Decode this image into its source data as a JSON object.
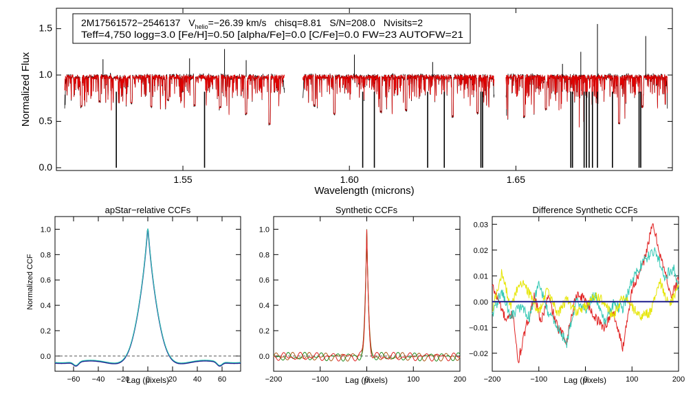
{
  "colors": {
    "axis": "#000000",
    "observed": "#000000",
    "model": "#e00000",
    "ccf_dark": "#1a1a8c",
    "ccf_cyan": "#35c9b5",
    "ccf_orange": "#b05a1a",
    "ccf_green": "#1e8c1e",
    "ccf_red": "#e02020",
    "ccf_yellow": "#e5e500",
    "zero_line": "#555555"
  },
  "chart_data": [
    {
      "id": "spectrum",
      "type": "line",
      "title": "",
      "xlabel": "Wavelength (microns)",
      "ylabel": "Normalized Flux",
      "xlim": [
        1.512,
        1.697
      ],
      "ylim": [
        -0.03,
        1.72
      ],
      "xticks": [
        1.55,
        1.6,
        1.65
      ],
      "xtick_labels": [
        "1.55",
        "1.60",
        "1.65"
      ],
      "yticks": [
        0.0,
        0.5,
        1.0,
        1.5
      ],
      "ytick_labels": [
        "0.0",
        "0.5",
        "1.0",
        "1.5"
      ],
      "annotation": {
        "star_id": "2M17561572−2546137",
        "vhelio_label": "V",
        "vhelio_subscript": "helio",
        "vhelio_value": "=−26.39 km/s",
        "chisq": "chisq=8.81",
        "snr": "S/N=208.0",
        "nvisits": "Nvisits=2",
        "params": "Teff=4,750 logg=3.0 [Fe/H]=0.50 [alpha/Fe]=0.0 [C/Fe]=0.0 FW=23 AUTOFW=21"
      },
      "detector_chips": [
        [
          1.5145,
          1.5805
        ],
        [
          1.586,
          1.6435
        ],
        [
          1.647,
          1.6955
        ]
      ],
      "continuum": 0.98,
      "series": [
        {
          "name": "observed spectrum",
          "color_key": "observed"
        },
        {
          "name": "model fit",
          "color_key": "model"
        }
      ],
      "bad_pixels": [
        1.53,
        1.5565,
        1.604,
        1.6075,
        1.6235,
        1.6285,
        1.6395,
        1.64,
        1.6665,
        1.667,
        1.6705,
        1.6712,
        1.672,
        1.673,
        1.6745,
        1.679,
        1.687,
        1.6875
      ],
      "emission_spikes": [
        {
          "x": 1.526,
          "y": 1.17
        },
        {
          "x": 1.552,
          "y": 1.18
        },
        {
          "x": 1.5625,
          "y": 1.28
        },
        {
          "x": 1.569,
          "y": 1.16
        },
        {
          "x": 1.6015,
          "y": 1.22
        },
        {
          "x": 1.625,
          "y": 1.14
        },
        {
          "x": 1.664,
          "y": 1.12
        },
        {
          "x": 1.6695,
          "y": 1.25
        },
        {
          "x": 1.6745,
          "y": 1.55
        },
        {
          "x": 1.689,
          "y": 1.42
        }
      ],
      "absorption_lines": [
        {
          "x": 1.5195,
          "y": 0.66
        },
        {
          "x": 1.525,
          "y": 0.71
        },
        {
          "x": 1.5345,
          "y": 0.7
        },
        {
          "x": 1.5405,
          "y": 0.66
        },
        {
          "x": 1.5455,
          "y": 0.73
        },
        {
          "x": 1.5535,
          "y": 0.67
        },
        {
          "x": 1.5612,
          "y": 0.65
        },
        {
          "x": 1.569,
          "y": 0.58
        },
        {
          "x": 1.576,
          "y": 0.47
        },
        {
          "x": 1.5895,
          "y": 0.67
        },
        {
          "x": 1.5955,
          "y": 0.58
        },
        {
          "x": 1.6095,
          "y": 0.6
        },
        {
          "x": 1.617,
          "y": 0.62
        },
        {
          "x": 1.631,
          "y": 0.55
        },
        {
          "x": 1.6385,
          "y": 0.59
        },
        {
          "x": 1.6525,
          "y": 0.55
        },
        {
          "x": 1.659,
          "y": 0.63
        },
        {
          "x": 1.681,
          "y": 0.48
        },
        {
          "x": 1.688,
          "y": 0.66
        }
      ]
    },
    {
      "id": "apstar_ccf",
      "type": "line",
      "title": "apStar−relative CCFs",
      "xlabel": "Lag (pixels)",
      "ylabel": "Normalized CCF",
      "xlim": [
        -75,
        75
      ],
      "ylim": [
        -0.12,
        1.1
      ],
      "xticks": [
        -60,
        -40,
        -20,
        0,
        20,
        40,
        60
      ],
      "xtick_labels": [
        "−60",
        "−40",
        "−20",
        "0",
        "20",
        "40",
        "60"
      ],
      "yticks": [
        0.0,
        0.2,
        0.4,
        0.6,
        0.8,
        1.0
      ],
      "ytick_labels": [
        "0.0",
        "0.2",
        "0.4",
        "0.6",
        "0.8",
        "1.0"
      ],
      "zero_line": true,
      "peak": 1.0,
      "peak_lag": 0,
      "series": [
        {
          "name": "visit 1",
          "color_key": "ccf_dark"
        },
        {
          "name": "visit 2",
          "color_key": "ccf_cyan"
        }
      ]
    },
    {
      "id": "synthetic_ccf",
      "type": "line",
      "title": "Synthetic CCFs",
      "xlabel": "Lag (pixels)",
      "ylabel": "",
      "xlim": [
        -200,
        200
      ],
      "ylim": [
        -0.12,
        1.1
      ],
      "xticks": [
        -200,
        -100,
        0,
        100,
        200
      ],
      "xtick_labels": [
        "−200",
        "−100",
        "0",
        "100",
        "200"
      ],
      "yticks": [
        0.0,
        0.2,
        0.4,
        0.6,
        0.8,
        1.0
      ],
      "ytick_labels": [
        "0.0",
        "0.2",
        "0.4",
        "0.6",
        "0.8",
        "1.0"
      ],
      "zero_line": true,
      "peak": 1.0,
      "peak_lag": 0,
      "series": [
        {
          "name": "combined",
          "color_key": "ccf_orange"
        },
        {
          "name": "visit 1",
          "color_key": "ccf_green"
        },
        {
          "name": "visit 2",
          "color_key": "ccf_red"
        }
      ]
    },
    {
      "id": "difference_ccf",
      "type": "line",
      "title": "Difference Synthetic CCFs",
      "xlabel": "Lag (pixels)",
      "ylabel": "",
      "xlim": [
        -200,
        200
      ],
      "ylim": [
        -0.027,
        0.033
      ],
      "xticks": [
        -200,
        -100,
        0,
        100,
        200
      ],
      "xtick_labels": [
        "−200",
        "−100",
        "0",
        "100",
        "200"
      ],
      "yticks": [
        -0.02,
        -0.01,
        0.0,
        0.01,
        0.02,
        0.03
      ],
      "ytick_labels": [
        "−0.02",
        "−0.01",
        "0.00",
        "0.01",
        "0.02",
        "0.03"
      ],
      "zero_line": true,
      "series": [
        {
          "name": "difference red",
          "color_key": "ccf_red",
          "knots": [
            [
              -200,
              0.006
            ],
            [
              -185,
              0.0
            ],
            [
              -170,
              -0.008
            ],
            [
              -155,
              -0.004
            ],
            [
              -145,
              -0.024
            ],
            [
              -130,
              -0.012
            ],
            [
              -110,
              0.002
            ],
            [
              -95,
              -0.008
            ],
            [
              -80,
              0.002
            ],
            [
              -60,
              -0.01
            ],
            [
              -40,
              -0.015
            ],
            [
              -20,
              0.003
            ],
            [
              0,
              0.001
            ],
            [
              20,
              -0.006
            ],
            [
              40,
              -0.01
            ],
            [
              60,
              -0.004
            ],
            [
              80,
              -0.018
            ],
            [
              100,
              0.005
            ],
            [
              120,
              0.012
            ],
            [
              145,
              0.03
            ],
            [
              165,
              0.015
            ],
            [
              185,
              0.002
            ],
            [
              200,
              0.009
            ]
          ]
        },
        {
          "name": "difference cyan",
          "color_key": "ccf_cyan",
          "knots": [
            [
              -200,
              -0.005
            ],
            [
              -180,
              0.004
            ],
            [
              -160,
              -0.006
            ],
            [
              -140,
              -0.002
            ],
            [
              -120,
              -0.006
            ],
            [
              -100,
              0.007
            ],
            [
              -80,
              -0.004
            ],
            [
              -60,
              -0.01
            ],
            [
              -40,
              -0.016
            ],
            [
              -20,
              0.0
            ],
            [
              0,
              -0.003
            ],
            [
              20,
              0.003
            ],
            [
              40,
              -0.008
            ],
            [
              60,
              -0.001
            ],
            [
              80,
              -0.003
            ],
            [
              100,
              0.008
            ],
            [
              125,
              0.016
            ],
            [
              150,
              0.02
            ],
            [
              170,
              0.01
            ],
            [
              190,
              0.013
            ],
            [
              200,
              0.005
            ]
          ]
        },
        {
          "name": "difference yellow",
          "color_key": "ccf_yellow",
          "knots": [
            [
              -200,
              -0.004
            ],
            [
              -180,
              0.011
            ],
            [
              -160,
              -0.002
            ],
            [
              -140,
              0.008
            ],
            [
              -120,
              0.003
            ],
            [
              -100,
              -0.004
            ],
            [
              -80,
              0.005
            ],
            [
              -60,
              -0.005
            ],
            [
              -40,
              0.001
            ],
            [
              -20,
              -0.004
            ],
            [
              0,
              -0.002
            ],
            [
              20,
              0.002
            ],
            [
              40,
              0.0
            ],
            [
              60,
              -0.006
            ],
            [
              80,
              0.002
            ],
            [
              100,
              -0.002
            ],
            [
              120,
              -0.006
            ],
            [
              140,
              -0.004
            ],
            [
              160,
              0.008
            ],
            [
              180,
              -0.002
            ],
            [
              200,
              0.006
            ]
          ]
        },
        {
          "name": "zero reference",
          "color_key": "ccf_dark",
          "knots": [
            [
              -200,
              0.0
            ],
            [
              200,
              0.0
            ]
          ]
        }
      ]
    }
  ]
}
